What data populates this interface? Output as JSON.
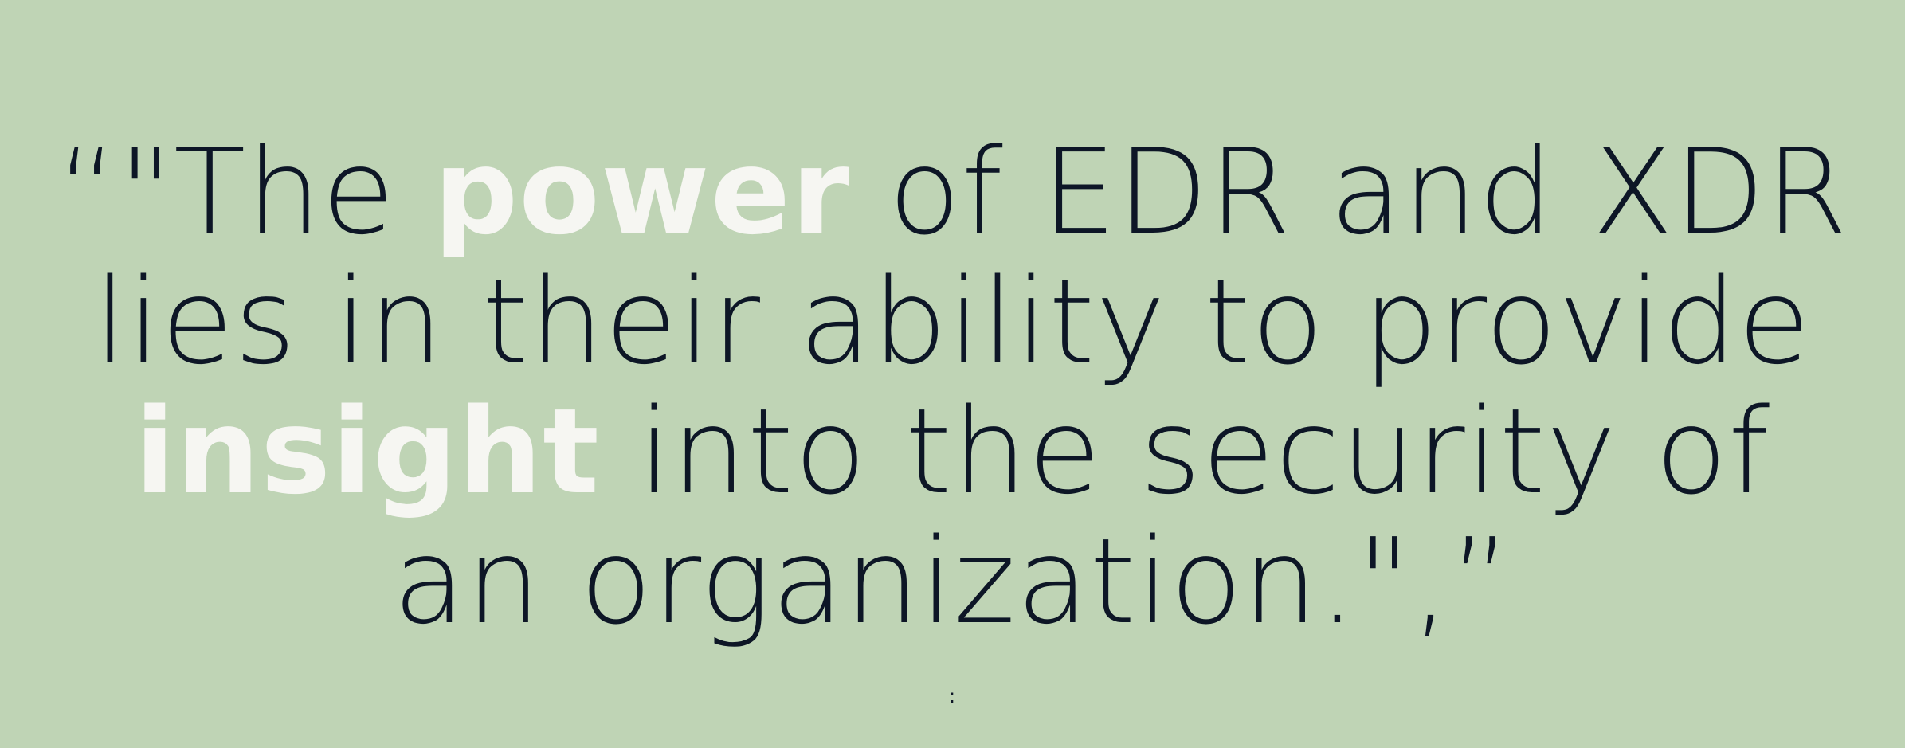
{
  "quote": {
    "line1": {
      "before": "“\"The ",
      "highlight": "power",
      "after": " of EDR and XDR"
    },
    "line2": {
      "text": "lies in their ability to provide"
    },
    "line3": {
      "highlight": "insight",
      "after": " into the security of"
    },
    "line4": {
      "text": "an organization.\",”"
    }
  },
  "indicator": ":",
  "colors": {
    "background": "#bfd4b5",
    "text": "#0d1626",
    "highlight": "#f6f6f2"
  }
}
